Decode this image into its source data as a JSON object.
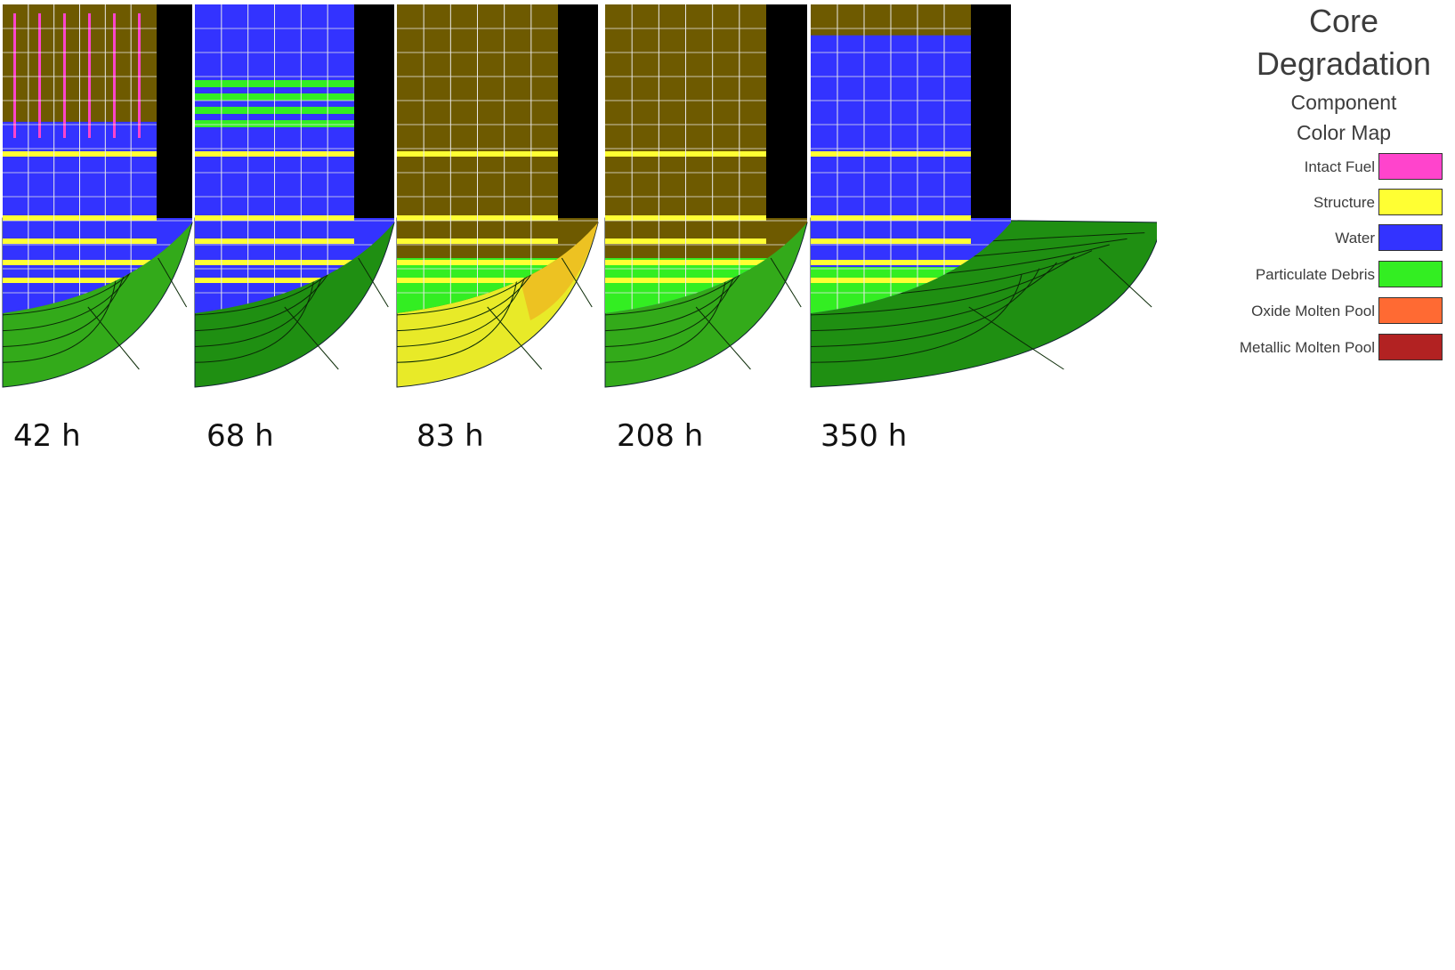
{
  "legend": {
    "title_line1": "Core",
    "title_line2": "Degradation",
    "subtitle_line1": "Component",
    "subtitle_line2": "Color Map",
    "items": [
      {
        "label": "Intact Fuel",
        "color": "#ff44cc"
      },
      {
        "label": "Structure",
        "color": "#ffff33"
      },
      {
        "label": "Water",
        "color": "#3333ff"
      },
      {
        "label": "Particulate Debris",
        "color": "#33ee22"
      },
      {
        "label": "Oxide Molten Pool",
        "color": "#ff6a33"
      },
      {
        "label": "Metallic Molten Pool",
        "color": "#b22222"
      }
    ]
  },
  "colors": {
    "void": "#6e5a00",
    "bypass": "#000000",
    "grid": "#e8e8e8",
    "head_dark": "#1f8f12",
    "head_medium": "#33aa1a",
    "head_yellow": "#e8ea28",
    "head_orange": "#f0b020"
  },
  "snapshots": [
    {
      "time_label": "42 h",
      "head_state": "intact",
      "water_top_fraction": 0.38
    },
    {
      "time_label": "68 h",
      "head_state": "intact",
      "water_top_fraction": 0.0
    },
    {
      "time_label": "83 h",
      "head_state": "heated",
      "water_top_fraction": 1.0
    },
    {
      "time_label": "208 h",
      "head_state": "intact",
      "water_top_fraction": 0.86
    },
    {
      "time_label": "350 h",
      "head_state": "intact",
      "water_top_fraction": 0.1
    }
  ]
}
